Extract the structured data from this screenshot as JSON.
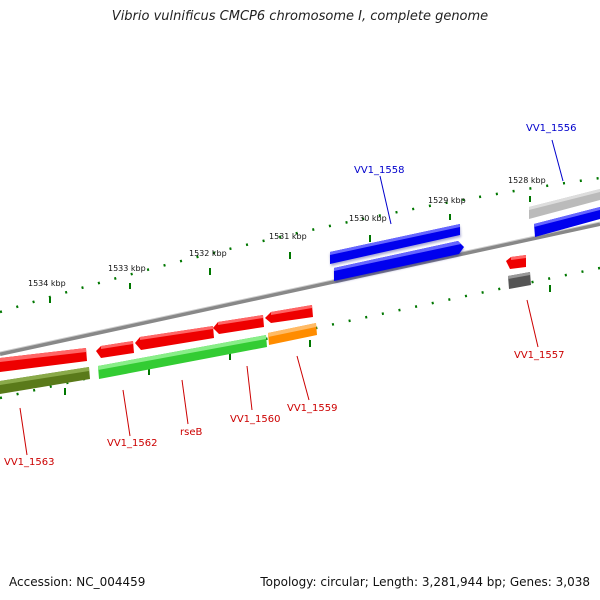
{
  "title": "Vibrio vulnificus CMCP6 chromosome I, complete genome",
  "footer": {
    "accession": "Accession: NC_004459",
    "summary": "Topology: circular; Length: 3,281,944 bp; Genes: 3,038"
  },
  "scale_labels": [
    "1534 kbp",
    "1533 kbp",
    "1532 kbp",
    "1531 kbp",
    "1530 kbp",
    "1529 kbp",
    "1528 kbp"
  ],
  "genes": {
    "vv1_1556": {
      "label": "VV1_1556",
      "color": "#0000cc"
    },
    "vv1_1558": {
      "label": "VV1_1558",
      "color": "#0000cc"
    },
    "vv1_1557": {
      "label": "VV1_1557",
      "color": "#cc0000"
    },
    "vv1_1559": {
      "label": "VV1_1559",
      "color": "#cc0000"
    },
    "vv1_1560": {
      "label": "VV1_1560",
      "color": "#cc0000"
    },
    "rseb": {
      "label": "rseB",
      "color": "#cc0000"
    },
    "vv1_1562": {
      "label": "VV1_1562",
      "color": "#cc0000"
    },
    "vv1_1563": {
      "label": "VV1_1563",
      "color": "#cc0000"
    }
  },
  "colors": {
    "forward_cds": "#0000ee",
    "reverse_cds": "#ee0000",
    "orange_feature": "#ff8c00",
    "green_feature": "#33cc33",
    "olive_feature": "#5a7a1a",
    "backbone": "#888888",
    "tick": "#007700"
  }
}
